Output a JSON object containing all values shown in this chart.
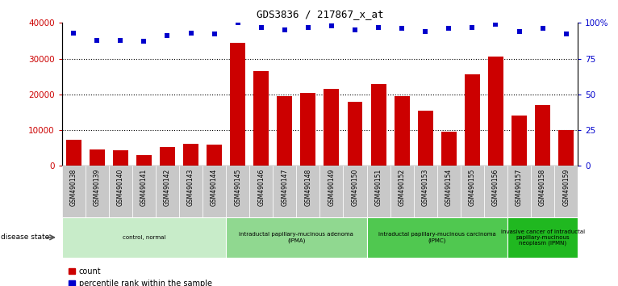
{
  "title": "GDS3836 / 217867_x_at",
  "samples": [
    "GSM490138",
    "GSM490139",
    "GSM490140",
    "GSM490141",
    "GSM490142",
    "GSM490143",
    "GSM490144",
    "GSM490145",
    "GSM490146",
    "GSM490147",
    "GSM490148",
    "GSM490149",
    "GSM490150",
    "GSM490151",
    "GSM490152",
    "GSM490153",
    "GSM490154",
    "GSM490155",
    "GSM490156",
    "GSM490157",
    "GSM490158",
    "GSM490159"
  ],
  "counts": [
    7200,
    4500,
    4400,
    3000,
    5200,
    6200,
    6000,
    34500,
    26500,
    19500,
    20500,
    21500,
    18000,
    23000,
    19500,
    15500,
    9500,
    25500,
    30500,
    14000,
    17000,
    10000
  ],
  "percentiles": [
    93,
    88,
    88,
    87,
    91,
    93,
    92,
    100,
    97,
    95,
    97,
    98,
    95,
    97,
    96,
    94,
    96,
    97,
    99,
    94,
    96,
    92
  ],
  "groups": [
    {
      "label": "control, normal",
      "start": 0,
      "end": 7,
      "color": "#c8ecc9"
    },
    {
      "label": "intraductal papillary-mucinous adenoma\n(IPMA)",
      "start": 7,
      "end": 13,
      "color": "#90d890"
    },
    {
      "label": "intraductal papillary-mucinous carcinoma\n(IPMC)",
      "start": 13,
      "end": 19,
      "color": "#50c850"
    },
    {
      "label": "invasive cancer of intraductal\npapillary-mucinous\nneoplasm (IPMN)",
      "start": 19,
      "end": 22,
      "color": "#20b820"
    }
  ],
  "bar_color": "#cc0000",
  "dot_color": "#0000cc",
  "ylim_left": [
    0,
    40000
  ],
  "ylim_right": [
    0,
    100
  ],
  "yticks_left": [
    0,
    10000,
    20000,
    30000,
    40000
  ],
  "ytick_labels_left": [
    "0",
    "10000",
    "20000",
    "30000",
    "40000"
  ],
  "yticks_right": [
    0,
    25,
    50,
    75,
    100
  ],
  "ytick_labels_right": [
    "0",
    "25",
    "50",
    "75",
    "100%"
  ],
  "cell_color": "#c8c8c8"
}
